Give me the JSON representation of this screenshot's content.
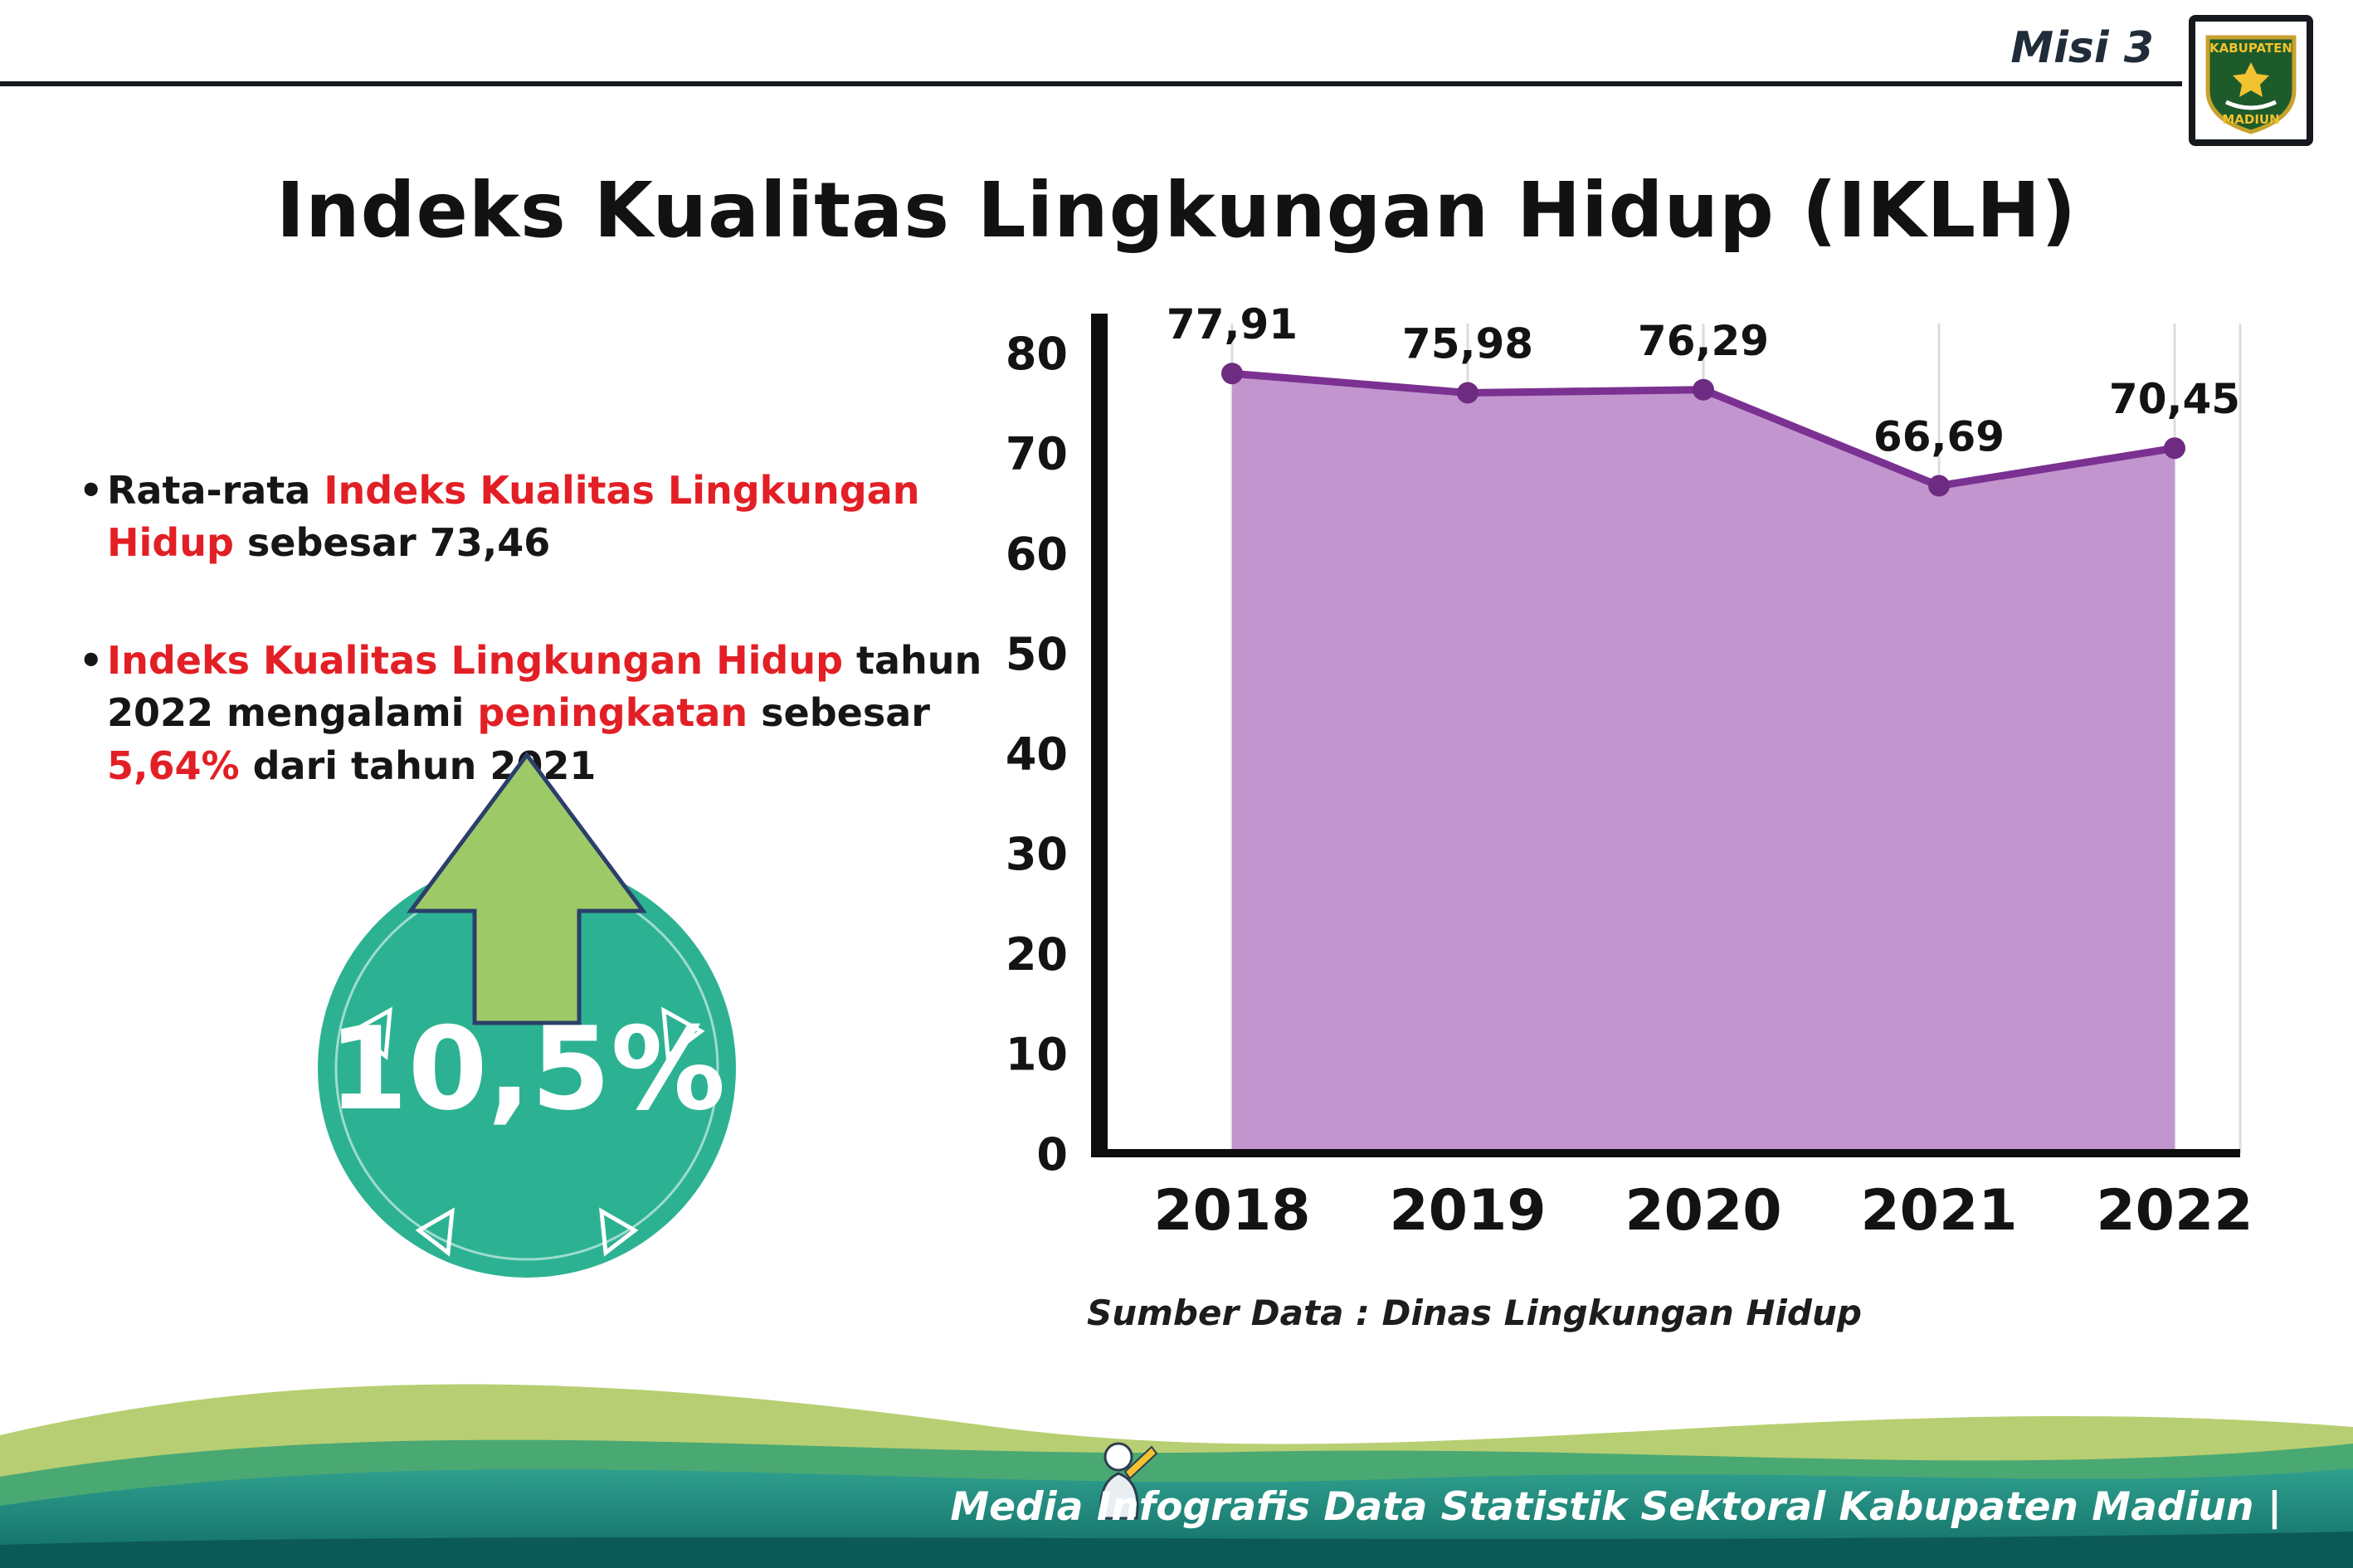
{
  "header": {
    "misi_label": "Misi 3",
    "title": "Indeks Kualitas Lingkungan Hidup (IKLH)",
    "logo_text_top": "KABUPATEN",
    "logo_text_bottom": "MADIUN"
  },
  "bullet_marker": "•",
  "bullets": [
    {
      "segments": [
        {
          "text": "Rata-rata ",
          "style": "dark"
        },
        {
          "text": "Indeks Kualitas Lingkungan Hidup",
          "style": "red"
        },
        {
          "text": " sebesar 73,46",
          "style": "dark"
        }
      ]
    },
    {
      "segments": [
        {
          "text": "Indeks Kualitas Lingkungan Hidup",
          "style": "red"
        },
        {
          "text": " tahun 2022 mengalami ",
          "style": "dark"
        },
        {
          "text": "peningkatan",
          "style": "red"
        },
        {
          "text": " sebesar ",
          "style": "dark"
        },
        {
          "text": "5,64%",
          "style": "red"
        },
        {
          "text": " dari tahun 2021",
          "style": "dark"
        }
      ]
    }
  ],
  "badge": {
    "value": "10,5%",
    "circle_color": "#2cb292",
    "arrow_color": "#9dca67"
  },
  "chart_data": {
    "type": "area",
    "categories": [
      "2018",
      "2019",
      "2020",
      "2021",
      "2022"
    ],
    "values": [
      77.91,
      75.98,
      76.29,
      66.69,
      70.45
    ],
    "value_labels": [
      "77,91",
      "75,98",
      "76,29",
      "66,69",
      "70,45"
    ],
    "title": "",
    "xlabel": "",
    "ylabel": "",
    "ylim": [
      0,
      80
    ],
    "ytick_step": 10,
    "grid": "vertical-light",
    "legend": "none",
    "area_color": "#c295ce",
    "line_color": "#7b3191",
    "point_color": "#6e2b82",
    "grid_color": "#dcdcdc",
    "axis_color": "#0d0d0d",
    "source": "Sumber Data : Dinas Lingkungan Hidup"
  },
  "footer": {
    "credit": "Media Infografis Data Statistik Sektoral Kabupaten Madiun |"
  },
  "colors": {
    "accent_red": "#e31f26",
    "teal": "#2cb292",
    "footer_light_green": "#b7cf72",
    "footer_mid_green": "#4aa873",
    "footer_teal_dark": "#0f6a63"
  }
}
